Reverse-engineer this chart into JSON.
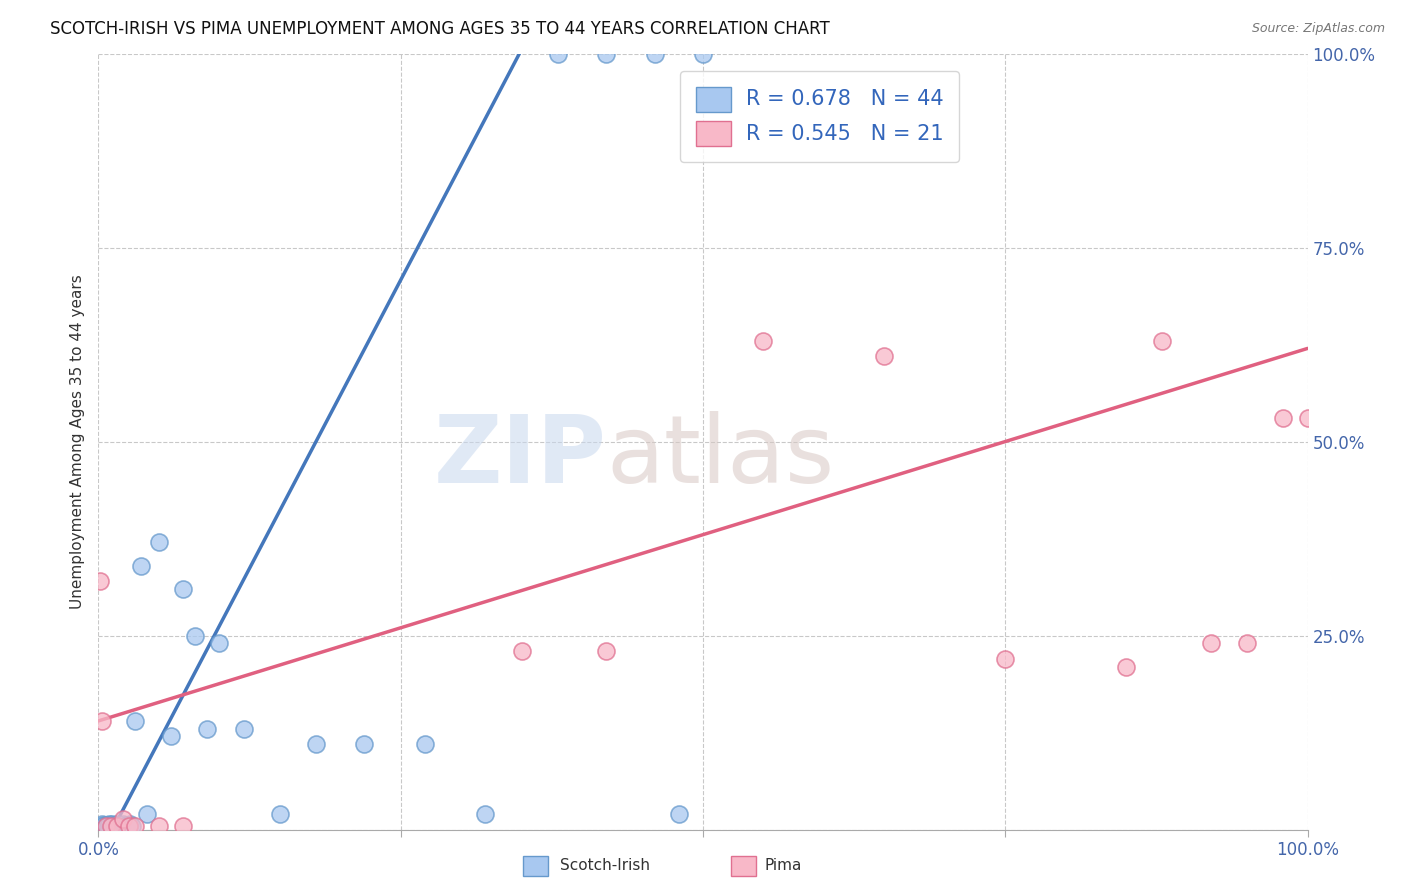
{
  "title": "SCOTCH-IRISH VS PIMA UNEMPLOYMENT AMONG AGES 35 TO 44 YEARS CORRELATION CHART",
  "source": "Source: ZipAtlas.com",
  "ylabel": "Unemployment Among Ages 35 to 44 years",
  "xlim": [
    0,
    1.0
  ],
  "ylim": [
    0,
    1.0
  ],
  "scotch_irish_fill": "#A8C8F0",
  "scotch_irish_edge": "#6699CC",
  "pima_fill": "#F8B8C8",
  "pima_edge": "#E07090",
  "scotch_irish_line": "#4477BB",
  "pima_line": "#E06080",
  "legend_R_scotch": "0.678",
  "legend_N_scotch": "44",
  "legend_R_pima": "0.545",
  "legend_N_pima": "21",
  "background_color": "#FFFFFF",
  "grid_color": "#BBBBBB",
  "tick_color": "#4466AA",
  "scotch_x": [
    0.001,
    0.002,
    0.003,
    0.004,
    0.005,
    0.006,
    0.007,
    0.008,
    0.009,
    0.01,
    0.011,
    0.012,
    0.013,
    0.014,
    0.015,
    0.016,
    0.017,
    0.018,
    0.019,
    0.02,
    0.022,
    0.024,
    0.026,
    0.028,
    0.03,
    0.035,
    0.04,
    0.05,
    0.06,
    0.07,
    0.08,
    0.09,
    0.1,
    0.12,
    0.15,
    0.18,
    0.22,
    0.27,
    0.32,
    0.38,
    0.42,
    0.46,
    0.48,
    0.5
  ],
  "scotch_y": [
    0.005,
    0.005,
    0.007,
    0.005,
    0.006,
    0.005,
    0.006,
    0.005,
    0.007,
    0.006,
    0.007,
    0.005,
    0.006,
    0.005,
    0.007,
    0.005,
    0.005,
    0.006,
    0.005,
    0.007,
    0.005,
    0.006,
    0.007,
    0.005,
    0.14,
    0.34,
    0.02,
    0.37,
    0.12,
    0.31,
    0.25,
    0.13,
    0.24,
    0.13,
    0.02,
    0.11,
    0.11,
    0.11,
    0.02,
    1.0,
    1.0,
    1.0,
    0.02,
    1.0
  ],
  "pima_x": [
    0.001,
    0.003,
    0.006,
    0.01,
    0.015,
    0.02,
    0.025,
    0.03,
    0.05,
    0.07,
    0.35,
    0.42,
    0.55,
    0.65,
    0.75,
    0.85,
    0.88,
    0.92,
    0.95,
    0.98,
    1.0
  ],
  "pima_y": [
    0.32,
    0.14,
    0.005,
    0.005,
    0.005,
    0.014,
    0.005,
    0.005,
    0.005,
    0.005,
    0.23,
    0.23,
    0.63,
    0.61,
    0.22,
    0.21,
    0.63,
    0.24,
    0.24,
    0.53,
    0.53
  ],
  "scotch_trendline_x": [
    0.0,
    0.36
  ],
  "scotch_trendline_y": [
    0.0,
    1.0
  ],
  "pima_trendline_x": [
    0.0,
    1.0
  ],
  "pima_trendline_y": [
    0.14,
    0.62
  ]
}
